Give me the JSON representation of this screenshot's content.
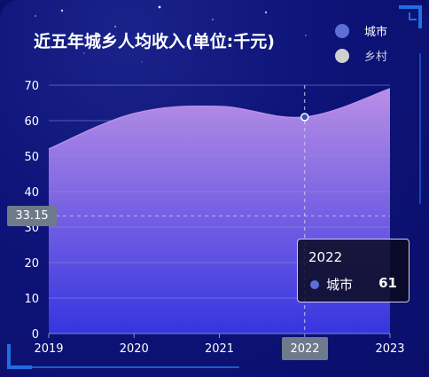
{
  "title": "近五年城乡人均收入(单位:千元)",
  "legend": [
    {
      "label": "城市",
      "color": "#5c6fd6"
    },
    {
      "label": "乡村",
      "color": "#d0d0d0"
    }
  ],
  "colors": {
    "axis_text": "#ffffff",
    "grid": "#8f8fd8",
    "area_top": "#b98ee6",
    "area_bottom": "#3535e0",
    "pointer_line": "#c9c9ef",
    "corner_accent": "#1f6fe0"
  },
  "chart_data": {
    "type": "area",
    "x": [
      "2019",
      "2020",
      "2021",
      "2022",
      "2023"
    ],
    "series": [
      {
        "name": "城市",
        "values": [
          52,
          62,
          64,
          61,
          69
        ]
      }
    ],
    "ylim": [
      0,
      70
    ],
    "yticks": [
      "0",
      "10",
      "20",
      "30",
      "40",
      "50",
      "60",
      "70"
    ],
    "grid": true,
    "legend_position": "top-right",
    "smooth": true
  },
  "tooltip": {
    "category": "2022",
    "series": "城市",
    "value": "61"
  },
  "axis_pointer": {
    "y_label": "33.15",
    "x_label": "2022"
  }
}
